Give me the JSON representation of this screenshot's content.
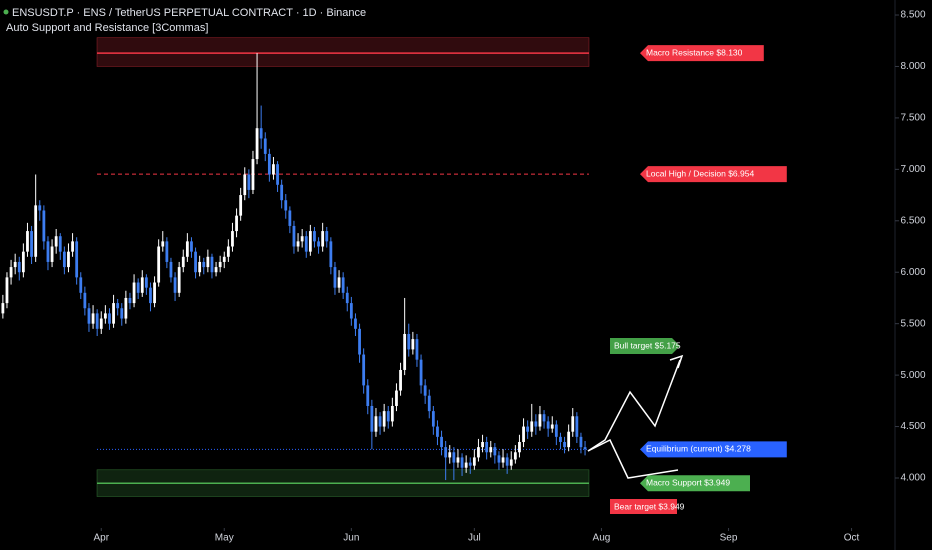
{
  "chart_data": {
    "type": "candlestick",
    "title": "ENSUSDT.P · ENS / TetherUS PERPETUAL CONTRACT · 1D · Binance",
    "subtitle": "Auto Support and Resistance [3Commas]",
    "up_color": "#ffffff",
    "down_color": "#3d7df0",
    "xlim": [
      -0.7,
      217.6
    ],
    "xticks": [
      {
        "value": 24,
        "label": "Apr"
      },
      {
        "value": 54,
        "label": "May"
      },
      {
        "value": 85,
        "label": "Jun"
      },
      {
        "value": 115,
        "label": "Jul"
      },
      {
        "value": 146,
        "label": "Aug"
      },
      {
        "value": 177,
        "label": "Sep"
      },
      {
        "value": 207,
        "label": "Oct"
      }
    ],
    "ylim": [
      3.514,
      8.646
    ],
    "yticks": [
      {
        "value": 4,
        "label": "4.000"
      },
      {
        "value": 4.5,
        "label": "4.500"
      },
      {
        "value": 5,
        "label": "5.000"
      },
      {
        "value": 5.5,
        "label": "5.500"
      },
      {
        "value": 6,
        "label": "6.000"
      },
      {
        "value": 6.5,
        "label": "6.500"
      },
      {
        "value": 7,
        "label": "7.000"
      },
      {
        "value": 7.5,
        "label": "7.500"
      },
      {
        "value": 8,
        "label": "8.000"
      },
      {
        "value": 8.5,
        "label": "8.500"
      }
    ],
    "candles": [
      [
        5.6,
        5.78,
        5.55,
        5.7
      ],
      [
        5.7,
        6.0,
        5.65,
        5.95
      ],
      [
        5.95,
        6.12,
        5.88,
        6.05
      ],
      [
        6.05,
        6.18,
        5.98,
        6.1
      ],
      [
        6.1,
        6.15,
        5.92,
        6.0
      ],
      [
        6.0,
        6.28,
        5.95,
        6.2
      ],
      [
        6.2,
        6.48,
        6.15,
        6.4
      ],
      [
        6.4,
        6.45,
        6.08,
        6.15
      ],
      [
        6.15,
        6.95,
        6.1,
        6.65
      ],
      [
        6.65,
        6.7,
        6.5,
        6.6
      ],
      [
        6.6,
        6.65,
        6.22,
        6.3
      ],
      [
        6.3,
        6.35,
        6.02,
        6.1
      ],
      [
        6.1,
        6.32,
        6.05,
        6.25
      ],
      [
        6.25,
        6.42,
        6.18,
        6.35
      ],
      [
        6.35,
        6.38,
        6.12,
        6.2
      ],
      [
        6.2,
        6.25,
        5.98,
        6.05
      ],
      [
        6.05,
        6.28,
        6.0,
        6.2
      ],
      [
        6.2,
        6.38,
        6.15,
        6.3
      ],
      [
        6.3,
        6.34,
        5.88,
        5.95
      ],
      [
        5.95,
        6.0,
        5.74,
        5.8
      ],
      [
        5.8,
        5.86,
        5.58,
        5.65
      ],
      [
        5.65,
        5.7,
        5.42,
        5.5
      ],
      [
        5.5,
        5.68,
        5.45,
        5.6
      ],
      [
        5.6,
        5.64,
        5.38,
        5.45
      ],
      [
        5.45,
        5.62,
        5.4,
        5.55
      ],
      [
        5.55,
        5.68,
        5.5,
        5.6
      ],
      [
        5.6,
        5.65,
        5.44,
        5.5
      ],
      [
        5.5,
        5.78,
        5.46,
        5.7
      ],
      [
        5.7,
        5.74,
        5.58,
        5.65
      ],
      [
        5.65,
        5.7,
        5.48,
        5.55
      ],
      [
        5.55,
        5.82,
        5.5,
        5.75
      ],
      [
        5.75,
        5.8,
        5.64,
        5.7
      ],
      [
        5.7,
        5.98,
        5.66,
        5.9
      ],
      [
        5.9,
        5.94,
        5.74,
        5.8
      ],
      [
        5.8,
        6.02,
        5.76,
        5.95
      ],
      [
        5.95,
        5.98,
        5.78,
        5.85
      ],
      [
        5.85,
        5.9,
        5.62,
        5.7
      ],
      [
        5.7,
        5.96,
        5.66,
        5.9
      ],
      [
        5.9,
        6.32,
        5.86,
        6.25
      ],
      [
        6.25,
        6.4,
        6.2,
        6.3
      ],
      [
        6.3,
        6.34,
        6.04,
        6.1
      ],
      [
        6.1,
        6.14,
        5.9,
        5.95
      ],
      [
        5.95,
        6.0,
        5.72,
        5.8
      ],
      [
        5.8,
        6.1,
        5.76,
        6.05
      ],
      [
        6.05,
        6.22,
        6.0,
        6.15
      ],
      [
        6.15,
        6.38,
        6.1,
        6.3
      ],
      [
        6.3,
        6.34,
        6.14,
        6.2
      ],
      [
        6.2,
        6.24,
        5.94,
        6.0
      ],
      [
        6.0,
        6.16,
        5.96,
        6.1
      ],
      [
        6.1,
        6.14,
        5.98,
        6.05
      ],
      [
        6.05,
        6.22,
        6.0,
        6.15
      ],
      [
        6.15,
        6.18,
        5.94,
        6.0
      ],
      [
        6.0,
        6.1,
        5.96,
        6.05
      ],
      [
        6.05,
        6.16,
        6.0,
        6.1
      ],
      [
        6.1,
        6.2,
        6.04,
        6.15
      ],
      [
        6.15,
        6.32,
        6.1,
        6.25
      ],
      [
        6.25,
        6.48,
        6.2,
        6.4
      ],
      [
        6.4,
        6.62,
        6.34,
        6.55
      ],
      [
        6.55,
        6.82,
        6.5,
        6.75
      ],
      [
        6.75,
        7.02,
        6.7,
        6.95
      ],
      [
        6.95,
        7.0,
        6.72,
        6.8
      ],
      [
        6.8,
        7.18,
        6.76,
        7.1
      ],
      [
        7.1,
        8.13,
        7.05,
        7.4
      ],
      [
        7.4,
        7.62,
        7.2,
        7.3
      ],
      [
        7.3,
        7.36,
        7.08,
        7.15
      ],
      [
        7.15,
        7.2,
        6.88,
        6.95
      ],
      [
        6.95,
        7.12,
        6.9,
        7.05
      ],
      [
        7.05,
        7.08,
        6.78,
        6.85
      ],
      [
        6.85,
        6.9,
        6.62,
        6.7
      ],
      [
        6.7,
        6.76,
        6.52,
        6.6
      ],
      [
        6.6,
        6.64,
        6.38,
        6.45
      ],
      [
        6.45,
        6.5,
        6.18,
        6.25
      ],
      [
        6.25,
        6.38,
        6.2,
        6.3
      ],
      [
        6.3,
        6.42,
        6.24,
        6.35
      ],
      [
        6.35,
        6.4,
        6.14,
        6.2
      ],
      [
        6.2,
        6.46,
        6.16,
        6.4
      ],
      [
        6.4,
        6.44,
        6.24,
        6.3
      ],
      [
        6.3,
        6.34,
        6.18,
        6.25
      ],
      [
        6.25,
        6.48,
        6.2,
        6.4
      ],
      [
        6.4,
        6.44,
        6.24,
        6.3
      ],
      [
        6.3,
        6.34,
        5.98,
        6.05
      ],
      [
        6.05,
        6.1,
        5.78,
        5.85
      ],
      [
        5.85,
        6.02,
        5.8,
        5.95
      ],
      [
        5.95,
        6.0,
        5.74,
        5.8
      ],
      [
        5.8,
        5.86,
        5.62,
        5.7
      ],
      [
        5.7,
        5.76,
        5.48,
        5.55
      ],
      [
        5.55,
        5.6,
        5.38,
        5.45
      ],
      [
        5.45,
        5.5,
        5.12,
        5.2
      ],
      [
        5.2,
        5.26,
        4.82,
        4.9
      ],
      [
        4.9,
        4.96,
        4.62,
        4.7
      ],
      [
        4.7,
        4.76,
        4.28,
        4.45
      ],
      [
        4.45,
        4.68,
        4.4,
        4.6
      ],
      [
        4.6,
        4.64,
        4.42,
        4.5
      ],
      [
        4.5,
        4.72,
        4.45,
        4.65
      ],
      [
        4.65,
        4.7,
        4.48,
        4.55
      ],
      [
        4.55,
        4.78,
        4.5,
        4.7
      ],
      [
        4.7,
        4.92,
        4.65,
        4.85
      ],
      [
        4.85,
        5.12,
        4.8,
        5.05
      ],
      [
        5.05,
        5.75,
        5.0,
        5.4
      ],
      [
        5.4,
        5.5,
        5.18,
        5.25
      ],
      [
        5.25,
        5.42,
        5.2,
        5.35
      ],
      [
        5.35,
        5.4,
        5.08,
        5.15
      ],
      [
        5.15,
        5.2,
        4.82,
        4.9
      ],
      [
        4.9,
        4.96,
        4.72,
        4.8
      ],
      [
        4.8,
        4.86,
        4.58,
        4.65
      ],
      [
        4.65,
        4.7,
        4.42,
        4.5
      ],
      [
        4.5,
        4.56,
        4.32,
        4.4
      ],
      [
        4.4,
        4.46,
        4.22,
        4.3
      ],
      [
        4.3,
        4.36,
        3.98,
        4.2
      ],
      [
        4.2,
        4.32,
        4.14,
        4.25
      ],
      [
        4.25,
        4.3,
        3.98,
        4.15
      ],
      [
        4.15,
        4.28,
        4.1,
        4.2
      ],
      [
        4.2,
        4.24,
        4.02,
        4.1
      ],
      [
        4.1,
        4.22,
        4.05,
        4.15
      ],
      [
        4.15,
        4.2,
        4.04,
        4.12
      ],
      [
        4.12,
        4.28,
        4.08,
        4.2
      ],
      [
        4.2,
        4.38,
        4.16,
        4.3
      ],
      [
        4.3,
        4.42,
        4.25,
        4.35
      ],
      [
        4.35,
        4.4,
        4.18,
        4.25
      ],
      [
        4.25,
        4.36,
        4.2,
        4.3
      ],
      [
        4.3,
        4.34,
        4.14,
        4.22
      ],
      [
        4.22,
        4.26,
        4.08,
        4.15
      ],
      [
        4.15,
        4.28,
        4.1,
        4.2
      ],
      [
        4.2,
        4.24,
        4.04,
        4.12
      ],
      [
        4.12,
        4.26,
        4.08,
        4.18
      ],
      [
        4.18,
        4.32,
        4.14,
        4.25
      ],
      [
        4.25,
        4.42,
        4.2,
        4.35
      ],
      [
        4.35,
        4.58,
        4.3,
        4.5
      ],
      [
        4.5,
        4.56,
        4.38,
        4.45
      ],
      [
        4.45,
        4.72,
        4.4,
        4.55
      ],
      [
        4.55,
        4.62,
        4.42,
        4.5
      ],
      [
        4.5,
        4.7,
        4.46,
        4.62
      ],
      [
        4.62,
        4.66,
        4.48,
        4.55
      ],
      [
        4.55,
        4.6,
        4.4,
        4.48
      ],
      [
        4.48,
        4.6,
        4.44,
        4.52
      ],
      [
        4.52,
        4.56,
        4.32,
        4.4
      ],
      [
        4.4,
        4.44,
        4.28,
        4.35
      ],
      [
        4.35,
        4.4,
        4.24,
        4.3
      ],
      [
        4.3,
        4.52,
        4.26,
        4.45
      ],
      [
        4.45,
        4.68,
        4.4,
        4.6
      ],
      [
        4.6,
        4.64,
        4.34,
        4.4
      ],
      [
        4.4,
        4.44,
        4.24,
        4.3
      ],
      [
        4.3,
        4.36,
        4.22,
        4.28
      ]
    ],
    "levels": [
      {
        "label": "Macro Resistance $8.130",
        "value": 8.13,
        "zone": [
          8.0,
          8.28
        ],
        "color": "#f23645",
        "style": "solid"
      },
      {
        "label": "Local High / Decision $6.954",
        "value": 6.954,
        "color": "#f23645",
        "style": "dashed"
      },
      {
        "label": "Equilibrium (current) $4.278",
        "value": 4.278,
        "color": "#2962ff",
        "style": "dotted"
      },
      {
        "label": "Macro Support $3.949",
        "value": 3.949,
        "zone": [
          3.82,
          4.08
        ],
        "color": "#4caf50",
        "style": "solid"
      }
    ],
    "annotations": [
      {
        "text": "Bull target $5.175",
        "color": "#43a047"
      },
      {
        "text": "Bear target $3.949",
        "color": "#f23645"
      }
    ]
  }
}
